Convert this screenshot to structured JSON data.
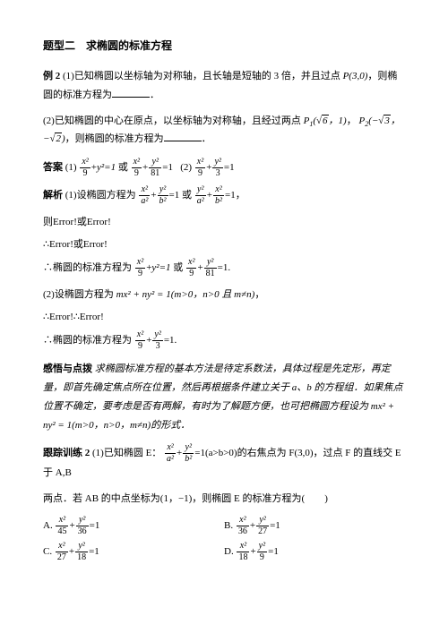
{
  "title": "题型二　求椭圆的标准方程",
  "ex2": {
    "label": "例 2",
    "p1a": "(1)已知椭圆以坐标轴为对称轴，且长轴是短轴的 3 倍，并且过点 ",
    "p1_point": "P(3,0)",
    "p1b": "，则椭圆的标准方程为",
    "period": "．",
    "p2a": "(2)已知椭圆的中心在原点，以坐标轴为对称轴，且经过两点 ",
    "p2_P1": "P₁(√6, 1)",
    "p2_P2": "P₂(−√3, −√2)",
    "p2b": "，则椭圆的标准方程为"
  },
  "answer": {
    "label": "答案",
    "a1_pre": "(1)",
    "a1_or": " 或 ",
    "a2_pre": "(2)"
  },
  "solution": {
    "label": "解析",
    "s1_pre": "(1)设椭圆方程为",
    "s1_or": " 或 ",
    "err1": "则Error!或Error!",
    "err2": "∴Error!或Error!",
    "s1_conclude": "∴椭圆的标准方程为",
    "s1_or2": " 或 ",
    "s2_pre": "(2)设椭圆方程为 ",
    "s2_formula": "mx² + ny² = 1(m>0，n>0 且 m≠n)",
    "err3": "∴Error!∴Error!",
    "s2_conclude": "∴椭圆的标准方程为"
  },
  "insight": {
    "label": "感悟与点拨",
    "text": "求椭圆标准方程的基本方法是待定系数法，具体过程是先定形，再定量，即首先确定焦点所在位置，然后再根据条件建立关于 a、b 的方程组．如果焦点位置不确定，要考虑是否有两解，有时为了解题方便，也可把椭圆方程设为 mx² + ny² = 1(m>0，n>0，m≠n)的形式．"
  },
  "track": {
    "label": "跟踪训练 2",
    "p1a": "(1)已知椭圆 E：",
    "p1_cond": "=1(a>b>0)的右焦点为 F(3,0)，过点 F 的直线交 E 于 A,B",
    "p2": "两点．若 AB 的中点坐标为(1，−1)，则椭圆 E 的标准方程为(　　)",
    "opts": {
      "A": "A.",
      "B": "B.",
      "C": "C.",
      "D": "D."
    }
  },
  "fracs": {
    "x2_9": {
      "n": "x²",
      "d": "9"
    },
    "y2_81": {
      "n": "y²",
      "d": "81"
    },
    "x2_9b": {
      "n": "x²",
      "d": "9"
    },
    "y2_3": {
      "n": "y²",
      "d": "3"
    },
    "x2_a2": {
      "n": "x²",
      "d": "a²"
    },
    "y2_b2": {
      "n": "y²",
      "d": "b²"
    },
    "y2_a2": {
      "n": "y²",
      "d": "a²"
    },
    "x2_b2": {
      "n": "x²",
      "d": "b²"
    },
    "x2_45_36": {
      "n": "x²",
      "d": "45"
    },
    "y2_36": {
      "n": "y²",
      "d": "36"
    },
    "x2_36": {
      "n": "x²",
      "d": "36"
    },
    "y2_27": {
      "n": "y²",
      "d": "27"
    },
    "x2_27": {
      "n": "x²",
      "d": "27"
    },
    "y2_18": {
      "n": "y²",
      "d": "18"
    },
    "x2_18": {
      "n": "x²",
      "d": "18"
    },
    "y2_9": {
      "n": "y²",
      "d": "9"
    }
  },
  "eq1": "=1",
  "plus": "+",
  "y2eq1": "y²=1",
  "comma": "，"
}
